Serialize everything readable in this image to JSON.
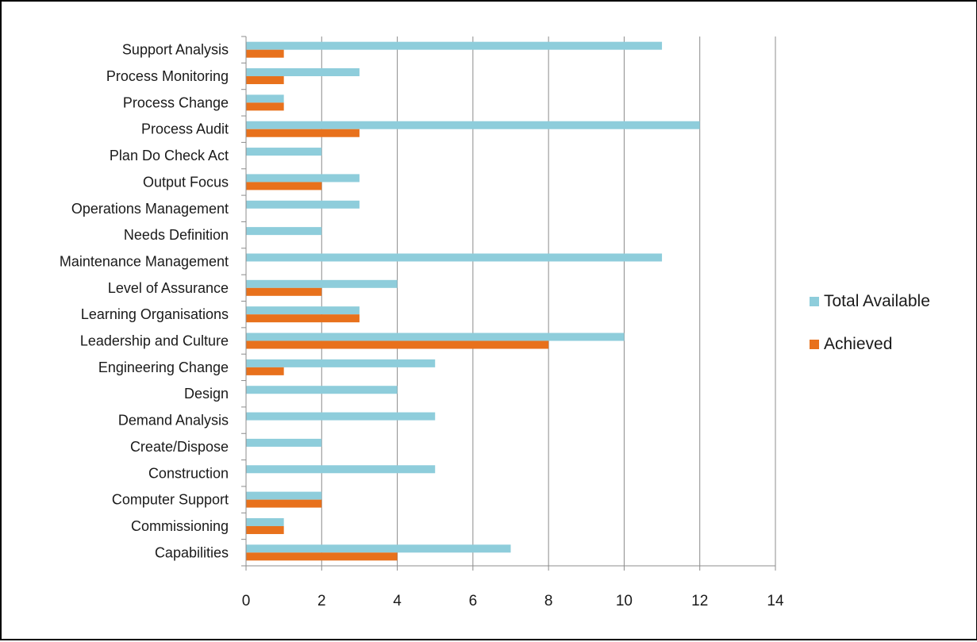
{
  "chart_data": {
    "type": "bar",
    "orientation": "horizontal",
    "title": "",
    "xlabel": "",
    "ylabel": "",
    "xlim": [
      0,
      14
    ],
    "x_ticks": [
      0,
      2,
      4,
      6,
      8,
      10,
      12,
      14
    ],
    "grid": "vertical",
    "legend_position": "right",
    "categories": [
      "Support Analysis",
      "Process Monitoring",
      "Process Change",
      "Process Audit",
      "Plan Do Check Act",
      "Output Focus",
      "Operations Management",
      "Needs Definition",
      "Maintenance Management",
      "Level of Assurance",
      "Learning Organisations",
      "Leadership and Culture",
      "Engineering Change",
      "Design",
      "Demand Analysis",
      "Create/Dispose",
      "Construction",
      "Computer Support",
      "Commissioning",
      "Capabilities"
    ],
    "series": [
      {
        "name": "Total Available",
        "color": "#8ECDDB",
        "values": [
          11,
          3,
          1,
          12,
          2,
          3,
          3,
          2,
          11,
          4,
          3,
          10,
          5,
          4,
          5,
          2,
          5,
          2,
          1,
          7
        ]
      },
      {
        "name": "Achieved",
        "color": "#E8711C",
        "values": [
          1,
          1,
          1,
          3,
          0,
          2,
          0,
          0,
          0,
          2,
          3,
          8,
          1,
          0,
          0,
          0,
          0,
          2,
          1,
          4
        ]
      }
    ]
  }
}
